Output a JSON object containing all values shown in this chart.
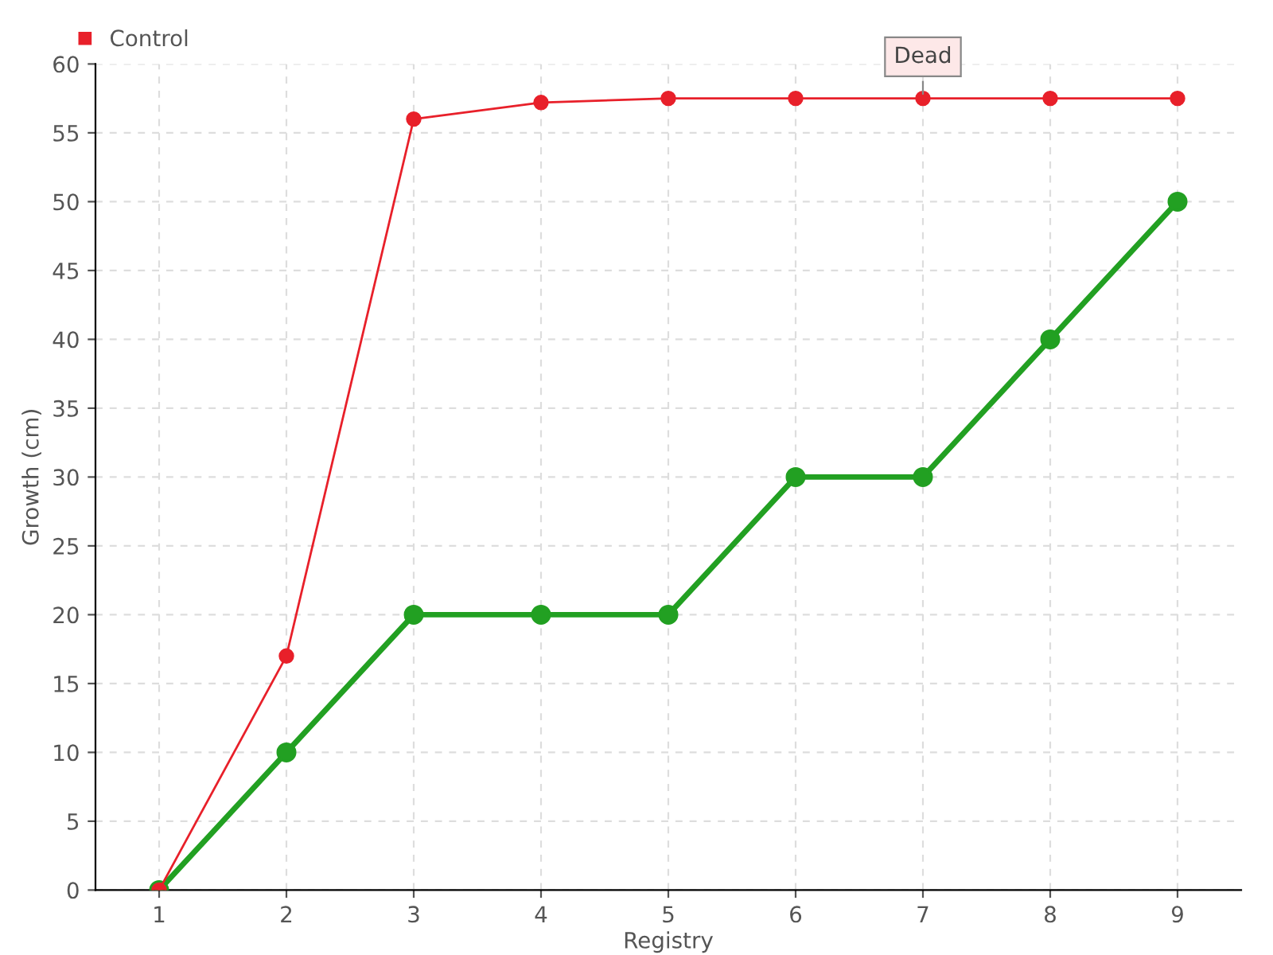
{
  "chart_data": {
    "type": "line",
    "xlabel": "Registry",
    "ylabel": "Growth (cm)",
    "categories": [
      "1",
      "2",
      "3",
      "4",
      "5",
      "6",
      "7",
      "8",
      "9"
    ],
    "series": [
      {
        "color": "#22a022",
        "values": [
          0,
          10,
          20,
          20,
          20,
          30,
          30,
          40,
          50
        ]
      },
      {
        "name": "Control",
        "color": "#e8202a",
        "values": [
          0,
          17,
          56,
          57.2,
          57.5,
          57.5,
          57.5,
          57.5,
          57.5
        ]
      }
    ],
    "ylim": [
      0,
      60
    ],
    "yticks": [
      0,
      5,
      10,
      15,
      20,
      25,
      30,
      35,
      40,
      45,
      50,
      55,
      60
    ],
    "annotations": [
      {
        "text": "Dead",
        "x": "7",
        "y": 57.5
      }
    ],
    "grid": true,
    "legend": "top left",
    "marker": "circle",
    "line_style": "solid"
  }
}
